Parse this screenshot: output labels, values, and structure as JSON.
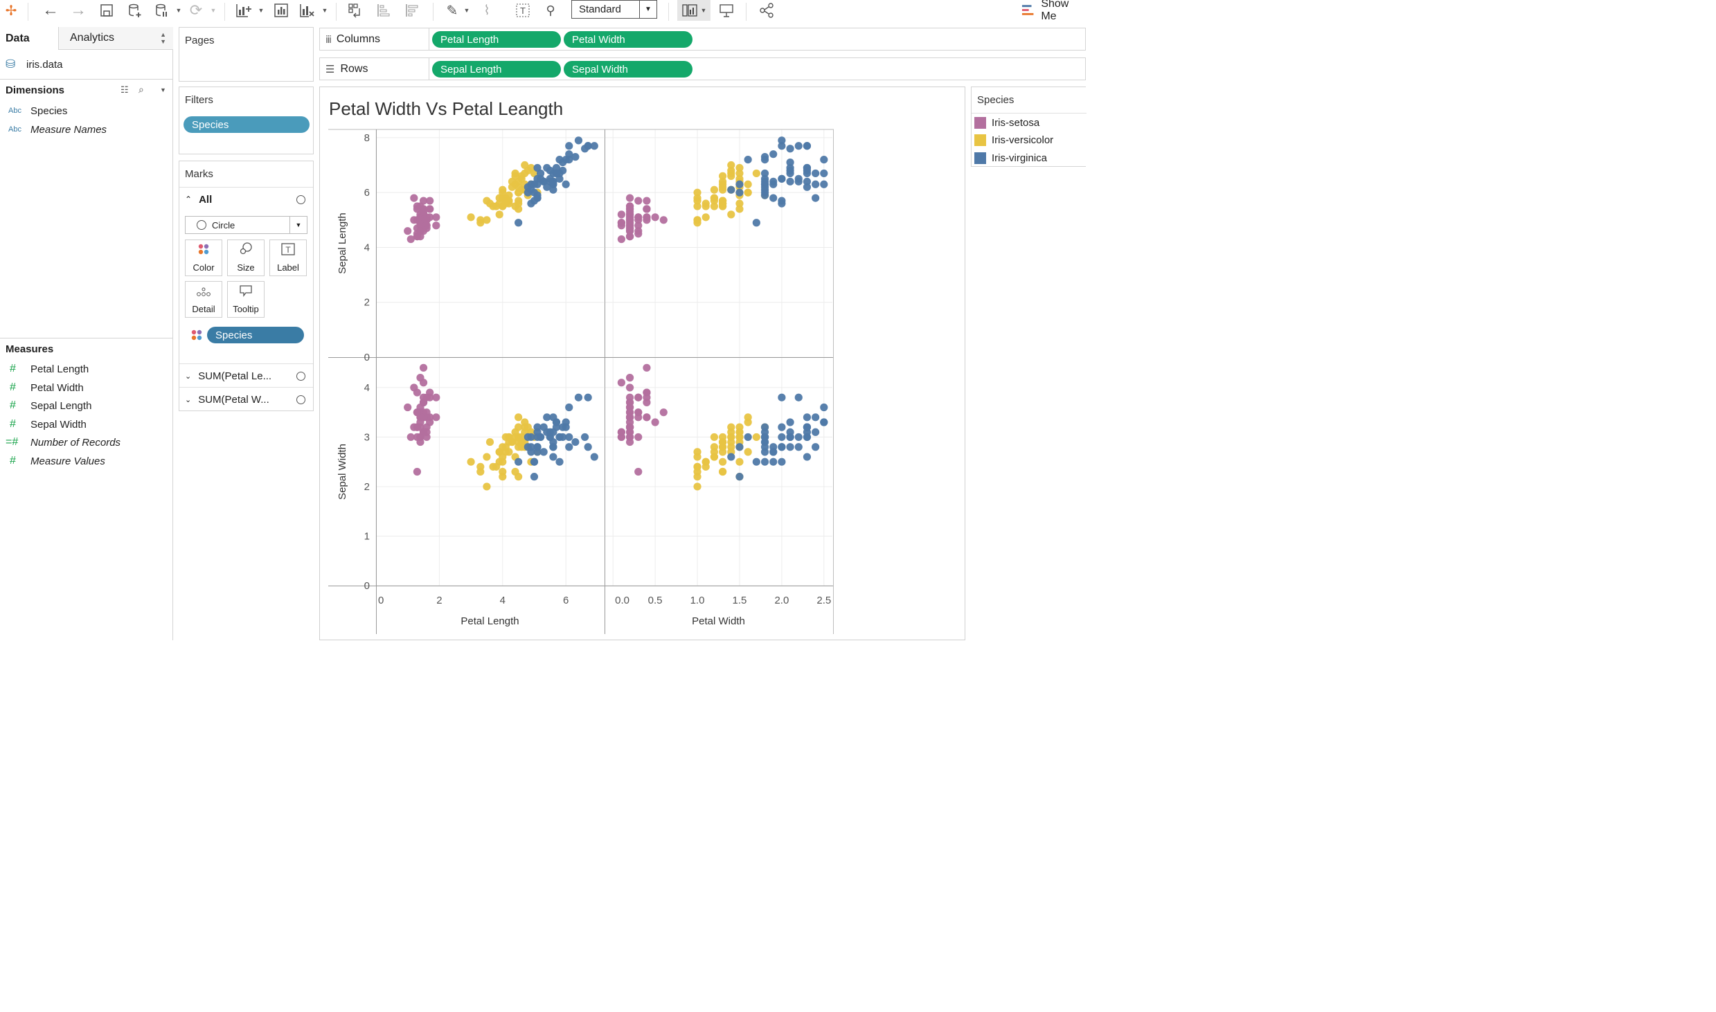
{
  "toolbar": {
    "standard_select": "Standard",
    "show_me": "Show Me",
    "icons": [
      "tableau-logo-icon",
      "back-icon",
      "forward-icon",
      "save-icon",
      "new-datasource-icon",
      "pause-datasource-icon",
      "refresh-icon",
      "new-worksheet-icon",
      "duplicate-sheet-icon",
      "clear-sheet-icon",
      "swap-icon",
      "sort-asc-icon",
      "sort-desc-icon",
      "highlight-icon",
      "annotate-icon",
      "label-icon",
      "pin-icon",
      "show-cards-icon",
      "presentation-icon",
      "share-icon",
      "show-me-icon"
    ]
  },
  "datapane": {
    "tabs": {
      "data": "Data",
      "analytics": "Analytics"
    },
    "datasource": "iris.data",
    "dimensions_title": "Dimensions",
    "dimensions": [
      {
        "type": "Abc",
        "label": "Species",
        "italic": false
      },
      {
        "type": "Abc",
        "label": "Measure Names",
        "italic": true
      }
    ],
    "measures_title": "Measures",
    "measures": [
      {
        "type": "#",
        "label": "Petal Length",
        "italic": false
      },
      {
        "type": "#",
        "label": "Petal Width",
        "italic": false
      },
      {
        "type": "#",
        "label": "Sepal Length",
        "italic": false
      },
      {
        "type": "#",
        "label": "Sepal Width",
        "italic": false
      },
      {
        "type": "=#",
        "label": "Number of Records",
        "italic": true
      },
      {
        "type": "#",
        "label": "Measure Values",
        "italic": true
      }
    ]
  },
  "pages": {
    "title": "Pages"
  },
  "filters": {
    "title": "Filters",
    "pill": "Species"
  },
  "marks": {
    "title": "Marks",
    "all_label": "All",
    "mark_type": "Circle",
    "buttons": {
      "color": "Color",
      "size": "Size",
      "label": "Label",
      "detail": "Detail",
      "tooltip": "Tooltip"
    },
    "color_pill": "Species",
    "sub_cards": [
      "SUM(Petal Le...",
      "SUM(Petal W..."
    ]
  },
  "shelves": {
    "columns_label": "Columns",
    "rows_label": "Rows",
    "columns": [
      "Petal Length",
      "Petal Width"
    ],
    "rows": [
      "Sepal Length",
      "Sepal Width"
    ]
  },
  "viz": {
    "title": "Petal Width Vs Petal Leangth"
  },
  "legend": {
    "title": "Species",
    "items": [
      {
        "label": "Iris-setosa",
        "color": "#b36f9e"
      },
      {
        "label": "Iris-versicolor",
        "color": "#e8c443"
      },
      {
        "label": "Iris-virginica",
        "color": "#4f79a8"
      }
    ]
  },
  "chart_data": {
    "type": "scatter",
    "layout": "2x2 matrix",
    "columns": [
      "Petal Length",
      "Petal Width"
    ],
    "rows": [
      "Sepal Length",
      "Sepal Width"
    ],
    "axes": {
      "Petal Length": {
        "range": [
          0,
          7.2
        ],
        "ticks": [
          0,
          2,
          4,
          6
        ],
        "label": "Petal Length"
      },
      "Petal Width": {
        "range": [
          -0.1,
          2.6
        ],
        "ticks": [
          "0.0",
          "0.5",
          "1.0",
          "1.5",
          "2.0",
          "2.5"
        ],
        "label": "Petal Width"
      },
      "Sepal Length": {
        "range": [
          0,
          8.3
        ],
        "ticks": [
          0,
          2,
          4,
          6,
          8
        ],
        "label": "Sepal Length"
      },
      "Sepal Width": {
        "range": [
          0,
          4.6
        ],
        "ticks": [
          0,
          1,
          2,
          3,
          4
        ],
        "label": "Sepal Width"
      }
    },
    "series": [
      {
        "name": "Iris-setosa",
        "color": "#b36f9e",
        "points": [
          [
            5.1,
            3.5,
            1.4,
            0.2
          ],
          [
            4.9,
            3.0,
            1.4,
            0.2
          ],
          [
            4.7,
            3.2,
            1.3,
            0.2
          ],
          [
            4.6,
            3.1,
            1.5,
            0.2
          ],
          [
            5.0,
            3.6,
            1.4,
            0.2
          ],
          [
            5.4,
            3.9,
            1.7,
            0.4
          ],
          [
            4.6,
            3.4,
            1.4,
            0.3
          ],
          [
            5.0,
            3.4,
            1.5,
            0.2
          ],
          [
            4.4,
            2.9,
            1.4,
            0.2
          ],
          [
            4.9,
            3.1,
            1.5,
            0.1
          ],
          [
            5.4,
            3.7,
            1.5,
            0.2
          ],
          [
            4.8,
            3.4,
            1.6,
            0.2
          ],
          [
            4.8,
            3.0,
            1.4,
            0.1
          ],
          [
            4.3,
            3.0,
            1.1,
            0.1
          ],
          [
            5.8,
            4.0,
            1.2,
            0.2
          ],
          [
            5.7,
            4.4,
            1.5,
            0.4
          ],
          [
            5.4,
            3.9,
            1.3,
            0.4
          ],
          [
            5.1,
            3.5,
            1.4,
            0.3
          ],
          [
            5.7,
            3.8,
            1.7,
            0.3
          ],
          [
            5.1,
            3.8,
            1.5,
            0.3
          ],
          [
            5.4,
            3.4,
            1.7,
            0.2
          ],
          [
            5.1,
            3.7,
            1.5,
            0.4
          ],
          [
            4.6,
            3.6,
            1.0,
            0.2
          ],
          [
            5.1,
            3.3,
            1.7,
            0.5
          ],
          [
            4.8,
            3.4,
            1.9,
            0.2
          ],
          [
            5.0,
            3.0,
            1.6,
            0.2
          ],
          [
            5.0,
            3.4,
            1.6,
            0.4
          ],
          [
            5.2,
            3.5,
            1.5,
            0.2
          ],
          [
            5.2,
            3.4,
            1.4,
            0.2
          ],
          [
            4.7,
            3.2,
            1.6,
            0.2
          ],
          [
            4.8,
            3.1,
            1.6,
            0.2
          ],
          [
            5.4,
            3.4,
            1.5,
            0.4
          ],
          [
            5.2,
            4.1,
            1.5,
            0.1
          ],
          [
            5.5,
            4.2,
            1.4,
            0.2
          ],
          [
            4.9,
            3.1,
            1.5,
            0.1
          ],
          [
            5.0,
            3.2,
            1.2,
            0.2
          ],
          [
            5.5,
            3.5,
            1.3,
            0.2
          ],
          [
            4.4,
            3.0,
            1.3,
            0.2
          ],
          [
            5.1,
            3.4,
            1.5,
            0.2
          ],
          [
            5.0,
            3.5,
            1.3,
            0.3
          ],
          [
            4.5,
            2.3,
            1.3,
            0.3
          ],
          [
            4.4,
            3.2,
            1.3,
            0.2
          ],
          [
            5.0,
            3.5,
            1.6,
            0.6
          ],
          [
            5.1,
            3.8,
            1.9,
            0.4
          ],
          [
            4.8,
            3.0,
            1.4,
            0.3
          ],
          [
            5.1,
            3.8,
            1.6,
            0.2
          ],
          [
            4.6,
            3.2,
            1.4,
            0.2
          ],
          [
            5.3,
            3.7,
            1.5,
            0.2
          ],
          [
            5.0,
            3.3,
            1.4,
            0.2
          ]
        ]
      },
      {
        "name": "Iris-versicolor",
        "color": "#e8c443",
        "points": [
          [
            7.0,
            3.2,
            4.7,
            1.4
          ],
          [
            6.4,
            3.2,
            4.5,
            1.5
          ],
          [
            6.9,
            3.1,
            4.9,
            1.5
          ],
          [
            5.5,
            2.3,
            4.0,
            1.3
          ],
          [
            6.5,
            2.8,
            4.6,
            1.5
          ],
          [
            5.7,
            2.8,
            4.5,
            1.3
          ],
          [
            6.3,
            3.3,
            4.7,
            1.6
          ],
          [
            4.9,
            2.4,
            3.3,
            1.0
          ],
          [
            6.6,
            2.9,
            4.6,
            1.3
          ],
          [
            5.2,
            2.7,
            3.9,
            1.4
          ],
          [
            5.0,
            2.0,
            3.5,
            1.0
          ],
          [
            5.9,
            3.0,
            4.2,
            1.5
          ],
          [
            6.0,
            2.2,
            4.0,
            1.0
          ],
          [
            6.1,
            2.9,
            4.7,
            1.4
          ],
          [
            5.6,
            2.9,
            3.6,
            1.3
          ],
          [
            6.7,
            3.1,
            4.4,
            1.4
          ],
          [
            5.6,
            3.0,
            4.5,
            1.5
          ],
          [
            5.8,
            2.7,
            4.1,
            1.0
          ],
          [
            6.2,
            2.2,
            4.5,
            1.5
          ],
          [
            5.6,
            2.5,
            3.9,
            1.1
          ],
          [
            5.9,
            3.2,
            4.8,
            1.8
          ],
          [
            6.1,
            2.8,
            4.0,
            1.3
          ],
          [
            6.3,
            2.5,
            4.9,
            1.5
          ],
          [
            6.1,
            2.8,
            4.7,
            1.2
          ],
          [
            6.4,
            2.9,
            4.3,
            1.3
          ],
          [
            6.6,
            3.0,
            4.4,
            1.4
          ],
          [
            6.8,
            2.8,
            4.8,
            1.4
          ],
          [
            6.7,
            3.0,
            5.0,
            1.7
          ],
          [
            6.0,
            2.9,
            4.5,
            1.5
          ],
          [
            5.7,
            2.6,
            3.5,
            1.0
          ],
          [
            5.5,
            2.4,
            3.8,
            1.1
          ],
          [
            5.5,
            2.4,
            3.7,
            1.0
          ],
          [
            5.8,
            2.7,
            3.9,
            1.2
          ],
          [
            6.0,
            2.7,
            5.1,
            1.6
          ],
          [
            5.4,
            3.0,
            4.5,
            1.5
          ],
          [
            6.0,
            3.4,
            4.5,
            1.6
          ],
          [
            6.7,
            3.1,
            4.7,
            1.5
          ],
          [
            6.3,
            2.3,
            4.4,
            1.3
          ],
          [
            5.6,
            3.0,
            4.1,
            1.3
          ],
          [
            5.5,
            2.5,
            4.0,
            1.3
          ],
          [
            5.5,
            2.6,
            4.4,
            1.2
          ],
          [
            6.1,
            3.0,
            4.6,
            1.4
          ],
          [
            5.8,
            2.6,
            4.0,
            1.2
          ],
          [
            5.0,
            2.3,
            3.3,
            1.0
          ],
          [
            5.6,
            2.7,
            4.2,
            1.3
          ],
          [
            5.7,
            3.0,
            4.2,
            1.2
          ],
          [
            5.7,
            2.9,
            4.2,
            1.3
          ],
          [
            6.2,
            2.9,
            4.3,
            1.3
          ],
          [
            5.1,
            2.5,
            3.0,
            1.1
          ],
          [
            5.7,
            2.8,
            4.1,
            1.3
          ]
        ]
      },
      {
        "name": "Iris-virginica",
        "color": "#4f79a8",
        "points": [
          [
            6.3,
            3.3,
            6.0,
            2.5
          ],
          [
            5.8,
            2.7,
            5.1,
            1.9
          ],
          [
            7.1,
            3.0,
            5.9,
            2.1
          ],
          [
            6.3,
            2.9,
            5.6,
            1.8
          ],
          [
            6.5,
            3.0,
            5.8,
            2.2
          ],
          [
            7.6,
            3.0,
            6.6,
            2.1
          ],
          [
            4.9,
            2.5,
            4.5,
            1.7
          ],
          [
            7.3,
            2.9,
            6.3,
            1.8
          ],
          [
            6.7,
            2.5,
            5.8,
            1.8
          ],
          [
            7.2,
            3.6,
            6.1,
            2.5
          ],
          [
            6.5,
            3.2,
            5.1,
            2.0
          ],
          [
            6.4,
            2.7,
            5.3,
            1.9
          ],
          [
            6.8,
            3.0,
            5.5,
            2.1
          ],
          [
            5.7,
            2.5,
            5.0,
            2.0
          ],
          [
            5.8,
            2.8,
            5.1,
            2.4
          ],
          [
            6.4,
            3.2,
            5.3,
            2.3
          ],
          [
            6.5,
            3.0,
            5.5,
            1.8
          ],
          [
            7.7,
            3.8,
            6.7,
            2.2
          ],
          [
            7.7,
            2.6,
            6.9,
            2.3
          ],
          [
            6.0,
            2.2,
            5.0,
            1.5
          ],
          [
            6.9,
            3.2,
            5.7,
            2.3
          ],
          [
            5.6,
            2.8,
            4.9,
            2.0
          ],
          [
            7.7,
            2.8,
            6.7,
            2.0
          ],
          [
            6.3,
            2.7,
            4.9,
            1.8
          ],
          [
            6.7,
            3.3,
            5.7,
            2.1
          ],
          [
            7.2,
            3.2,
            6.0,
            1.8
          ],
          [
            6.2,
            2.8,
            4.8,
            1.8
          ],
          [
            6.1,
            3.0,
            4.9,
            1.8
          ],
          [
            6.4,
            2.8,
            5.6,
            2.1
          ],
          [
            7.2,
            3.0,
            5.8,
            1.6
          ],
          [
            7.4,
            2.8,
            6.1,
            1.9
          ],
          [
            7.9,
            3.8,
            6.4,
            2.0
          ],
          [
            6.4,
            2.8,
            5.6,
            2.2
          ],
          [
            6.3,
            2.8,
            5.1,
            1.5
          ],
          [
            6.1,
            2.6,
            5.6,
            1.4
          ],
          [
            7.7,
            3.0,
            6.1,
            2.3
          ],
          [
            6.3,
            3.4,
            5.6,
            2.4
          ],
          [
            6.4,
            3.1,
            5.5,
            1.8
          ],
          [
            6.0,
            3.0,
            4.8,
            1.8
          ],
          [
            6.9,
            3.1,
            5.4,
            2.1
          ],
          [
            6.7,
            3.1,
            5.6,
            2.4
          ],
          [
            6.9,
            3.1,
            5.1,
            2.3
          ],
          [
            6.8,
            3.2,
            5.9,
            2.3
          ],
          [
            6.7,
            3.3,
            5.7,
            2.5
          ],
          [
            6.7,
            3.0,
            5.2,
            2.3
          ],
          [
            6.3,
            2.5,
            5.0,
            1.9
          ],
          [
            6.5,
            3.0,
            5.2,
            2.0
          ],
          [
            6.2,
            3.4,
            5.4,
            2.3
          ],
          [
            5.9,
            3.0,
            5.1,
            1.8
          ]
        ]
      }
    ],
    "point_order": [
      "Sepal Length",
      "Sepal Width",
      "Petal Length",
      "Petal Width"
    ]
  }
}
